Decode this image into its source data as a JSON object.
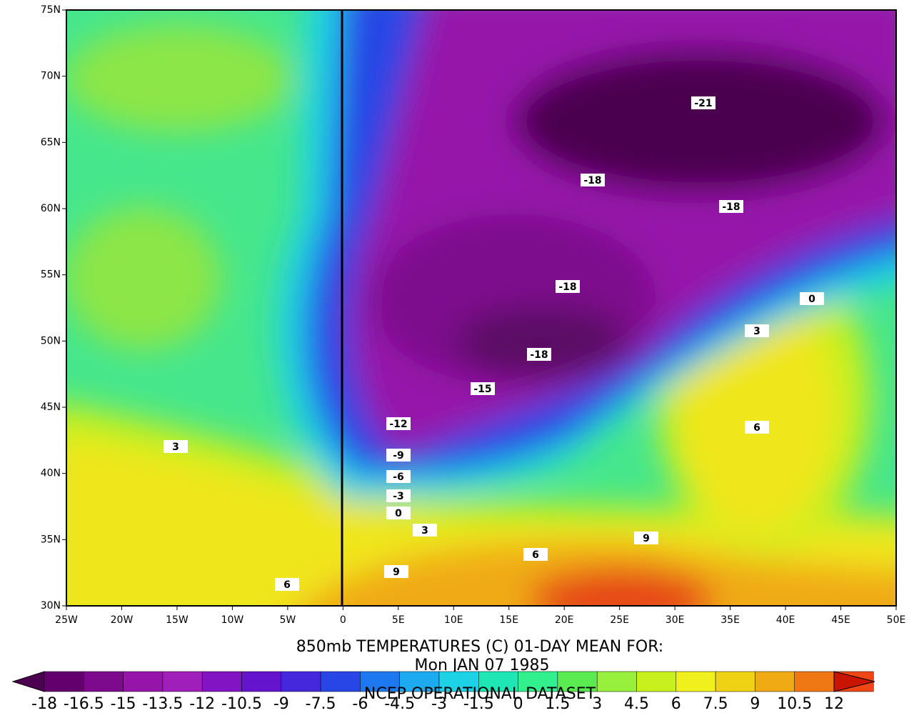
{
  "map": {
    "lat_labels": [
      "75N",
      "70N",
      "65N",
      "60N",
      "55N",
      "50N",
      "45N",
      "40N",
      "35N",
      "30N"
    ],
    "lon_labels": [
      "25W",
      "20W",
      "15W",
      "10W",
      "5W",
      "0",
      "5E",
      "10E",
      "15E",
      "20E",
      "25E",
      "30E",
      "35E",
      "40E",
      "45E",
      "50E"
    ],
    "contour_labels": [
      "-21",
      "-18",
      "-18",
      "-18",
      "-18",
      "-15",
      "-12",
      "-9",
      "-6",
      "-3",
      "0",
      "3",
      "6",
      "9",
      "9",
      "6",
      "3",
      "0",
      "3",
      "6"
    ]
  },
  "title": "850mb TEMPERATURES (C)    01-DAY MEAN FOR:",
  "date": "Mon JAN 07 1985",
  "dataset": "NCEP OPERATIONAL DATASET",
  "colorbar": {
    "colors": [
      "#4b0050",
      "#64006e",
      "#7d0a8c",
      "#9614aa",
      "#a01eb9",
      "#8214c3",
      "#6414cd",
      "#4628dc",
      "#2846e6",
      "#1e78f0",
      "#1eaaf0",
      "#1ed2e6",
      "#1ee6b4",
      "#32f08c",
      "#5aeb50",
      "#96f03c",
      "#c8f01e",
      "#f0f01e",
      "#f0d214",
      "#f0aa14",
      "#f07814",
      "#f04614",
      "#c81400"
    ],
    "labels": [
      "-18",
      "-16.5",
      "-15",
      "-13.5",
      "-12",
      "-10.5",
      "-9",
      "-7.5",
      "-6",
      "-4.5",
      "-3",
      "-1.5",
      "0",
      "1.5",
      "3",
      "4.5",
      "6",
      "7.5",
      "9",
      "10.5",
      "12"
    ]
  }
}
